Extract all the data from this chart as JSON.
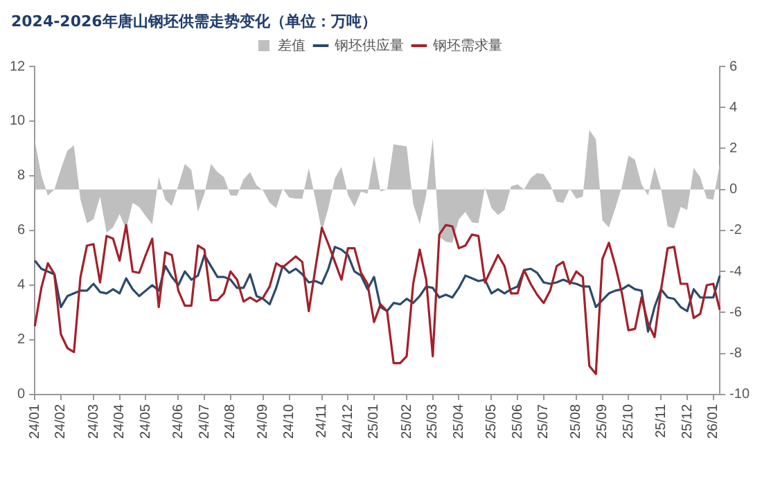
{
  "chart_data": {
    "type": "line",
    "title": "2024-2026年唐山钢坯供需走势变化（单位：万吨）",
    "categories": [
      "24/01",
      null,
      null,
      null,
      "24/02",
      null,
      null,
      null,
      null,
      "24/03",
      null,
      null,
      null,
      "24/04",
      null,
      null,
      null,
      "24/05",
      null,
      null,
      null,
      null,
      "24/06",
      null,
      null,
      null,
      "24/07",
      null,
      null,
      null,
      "24/08",
      null,
      null,
      null,
      null,
      "24/09",
      null,
      null,
      null,
      "24/10",
      null,
      null,
      null,
      null,
      "24/11",
      null,
      null,
      null,
      "24/12",
      null,
      null,
      null,
      "25/01",
      null,
      null,
      null,
      null,
      "25/02",
      null,
      null,
      null,
      "25/03",
      null,
      null,
      null,
      "25/04",
      null,
      null,
      null,
      null,
      "25/05",
      null,
      null,
      null,
      "25/06",
      null,
      null,
      null,
      "25/07",
      null,
      null,
      null,
      null,
      "25/08",
      null,
      null,
      null,
      "25/09",
      null,
      null,
      null,
      "25/10",
      null,
      null,
      null,
      null,
      "25/11",
      null,
      null,
      null,
      "25/12",
      null,
      null,
      null,
      "26/01",
      null
    ],
    "series": [
      {
        "name": "差值",
        "type": "area",
        "axis": "y2",
        "color": "#bfbfbf",
        "values": [
          2.4,
          0.7,
          -0.3,
          0.0,
          1.0,
          1.9,
          2.15,
          -0.5,
          -1.65,
          -1.45,
          -0.35,
          -2.1,
          -1.85,
          -1.2,
          -1.95,
          -0.65,
          -0.85,
          -1.3,
          -1.7,
          0.6,
          -0.5,
          -0.8,
          0.2,
          1.25,
          0.95,
          -1.1,
          -0.2,
          1.25,
          0.85,
          0.6,
          -0.3,
          -0.3,
          0.5,
          0.85,
          0.2,
          -0.05,
          -0.65,
          -0.9,
          0.05,
          -0.4,
          -0.45,
          -0.45,
          1.05,
          -0.45,
          -2.05,
          -0.9,
          0.55,
          1.1,
          -0.25,
          -0.85,
          -0.1,
          -0.2,
          1.65,
          -0.1,
          0.0,
          2.2,
          2.15,
          2.1,
          -0.7,
          -1.7,
          -0.25,
          2.5,
          -2.3,
          -2.55,
          -2.6,
          -1.45,
          -1.1,
          -1.6,
          -1.65,
          0.1,
          -0.9,
          -1.25,
          -1.0,
          0.15,
          0.25,
          0.0,
          0.55,
          0.8,
          0.75,
          0.25,
          -0.6,
          -0.65,
          0.05,
          -0.45,
          -0.35,
          2.9,
          2.45,
          -1.5,
          -1.85,
          -0.9,
          0.15,
          1.65,
          1.45,
          0.25,
          -0.3,
          1.1,
          0.0,
          -1.8,
          -1.9,
          -0.85,
          -1.0,
          1.05,
          0.6,
          -0.45,
          -0.5,
          1.25
        ]
      },
      {
        "name": "钢坯供应量",
        "color": "#2b4a6b",
        "values": [
          4.9,
          4.6,
          4.5,
          4.4,
          3.2,
          3.6,
          3.7,
          3.8,
          3.8,
          4.05,
          3.75,
          3.7,
          3.85,
          3.7,
          4.25,
          3.85,
          3.6,
          3.8,
          4.0,
          3.8,
          4.7,
          4.3,
          4.0,
          4.5,
          4.2,
          4.35,
          5.1,
          4.7,
          4.3,
          4.3,
          4.2,
          3.9,
          3.9,
          4.4,
          3.6,
          3.5,
          3.3,
          3.9,
          4.7,
          4.45,
          4.6,
          4.4,
          4.1,
          4.15,
          4.05,
          4.6,
          5.4,
          5.3,
          5.1,
          4.5,
          4.35,
          3.85,
          4.3,
          3.2,
          3.05,
          3.35,
          3.3,
          3.5,
          3.35,
          3.6,
          3.95,
          3.9,
          3.55,
          3.65,
          3.55,
          3.9,
          4.35,
          4.25,
          4.15,
          4.2,
          3.7,
          3.85,
          3.7,
          3.85,
          3.95,
          4.55,
          4.6,
          4.45,
          4.1,
          4.05,
          4.1,
          4.2,
          4.1,
          4.05,
          3.95,
          3.95,
          3.2,
          3.45,
          3.7,
          3.8,
          3.85,
          4.0,
          3.85,
          3.8,
          2.3,
          3.2,
          3.85,
          3.55,
          3.5,
          3.2,
          3.05,
          3.85,
          3.55,
          3.55,
          3.55,
          4.35
        ]
      },
      {
        "name": "钢坯需求量",
        "color": "#a3202a",
        "values": [
          2.5,
          3.9,
          4.8,
          4.4,
          2.2,
          1.7,
          1.55,
          4.3,
          5.45,
          5.5,
          4.1,
          5.8,
          5.7,
          4.9,
          6.2,
          4.5,
          4.45,
          5.1,
          5.7,
          3.2,
          5.2,
          5.1,
          3.8,
          3.25,
          3.25,
          5.45,
          5.3,
          3.45,
          3.45,
          3.7,
          4.5,
          4.2,
          3.4,
          3.55,
          3.4,
          3.55,
          3.95,
          4.8,
          4.65,
          4.85,
          5.05,
          4.85,
          3.05,
          4.6,
          6.1,
          5.5,
          4.85,
          4.2,
          5.35,
          5.35,
          4.45,
          4.05,
          2.65,
          3.3,
          3.05,
          1.15,
          1.15,
          1.4,
          4.05,
          5.3,
          4.2,
          1.4,
          5.85,
          6.2,
          6.15,
          5.35,
          5.45,
          5.85,
          5.8,
          4.1,
          4.6,
          5.1,
          4.7,
          3.7,
          3.7,
          4.55,
          4.05,
          3.65,
          3.35,
          3.8,
          4.7,
          4.85,
          4.05,
          4.5,
          4.3,
          1.05,
          0.75,
          4.95,
          5.55,
          4.7,
          3.7,
          2.35,
          2.4,
          3.55,
          2.6,
          2.1,
          3.85,
          5.35,
          5.4,
          4.05,
          4.05,
          2.8,
          2.95,
          4.0,
          4.05,
          3.1
        ]
      }
    ],
    "ylim": [
      0,
      12
    ],
    "yticks": [
      0,
      2,
      4,
      6,
      8,
      10,
      12
    ],
    "y2lim": [
      -10,
      6
    ],
    "y2ticks": [
      -10,
      -8,
      -6,
      -4,
      -2,
      0,
      2,
      4,
      6
    ],
    "legend": "top"
  }
}
